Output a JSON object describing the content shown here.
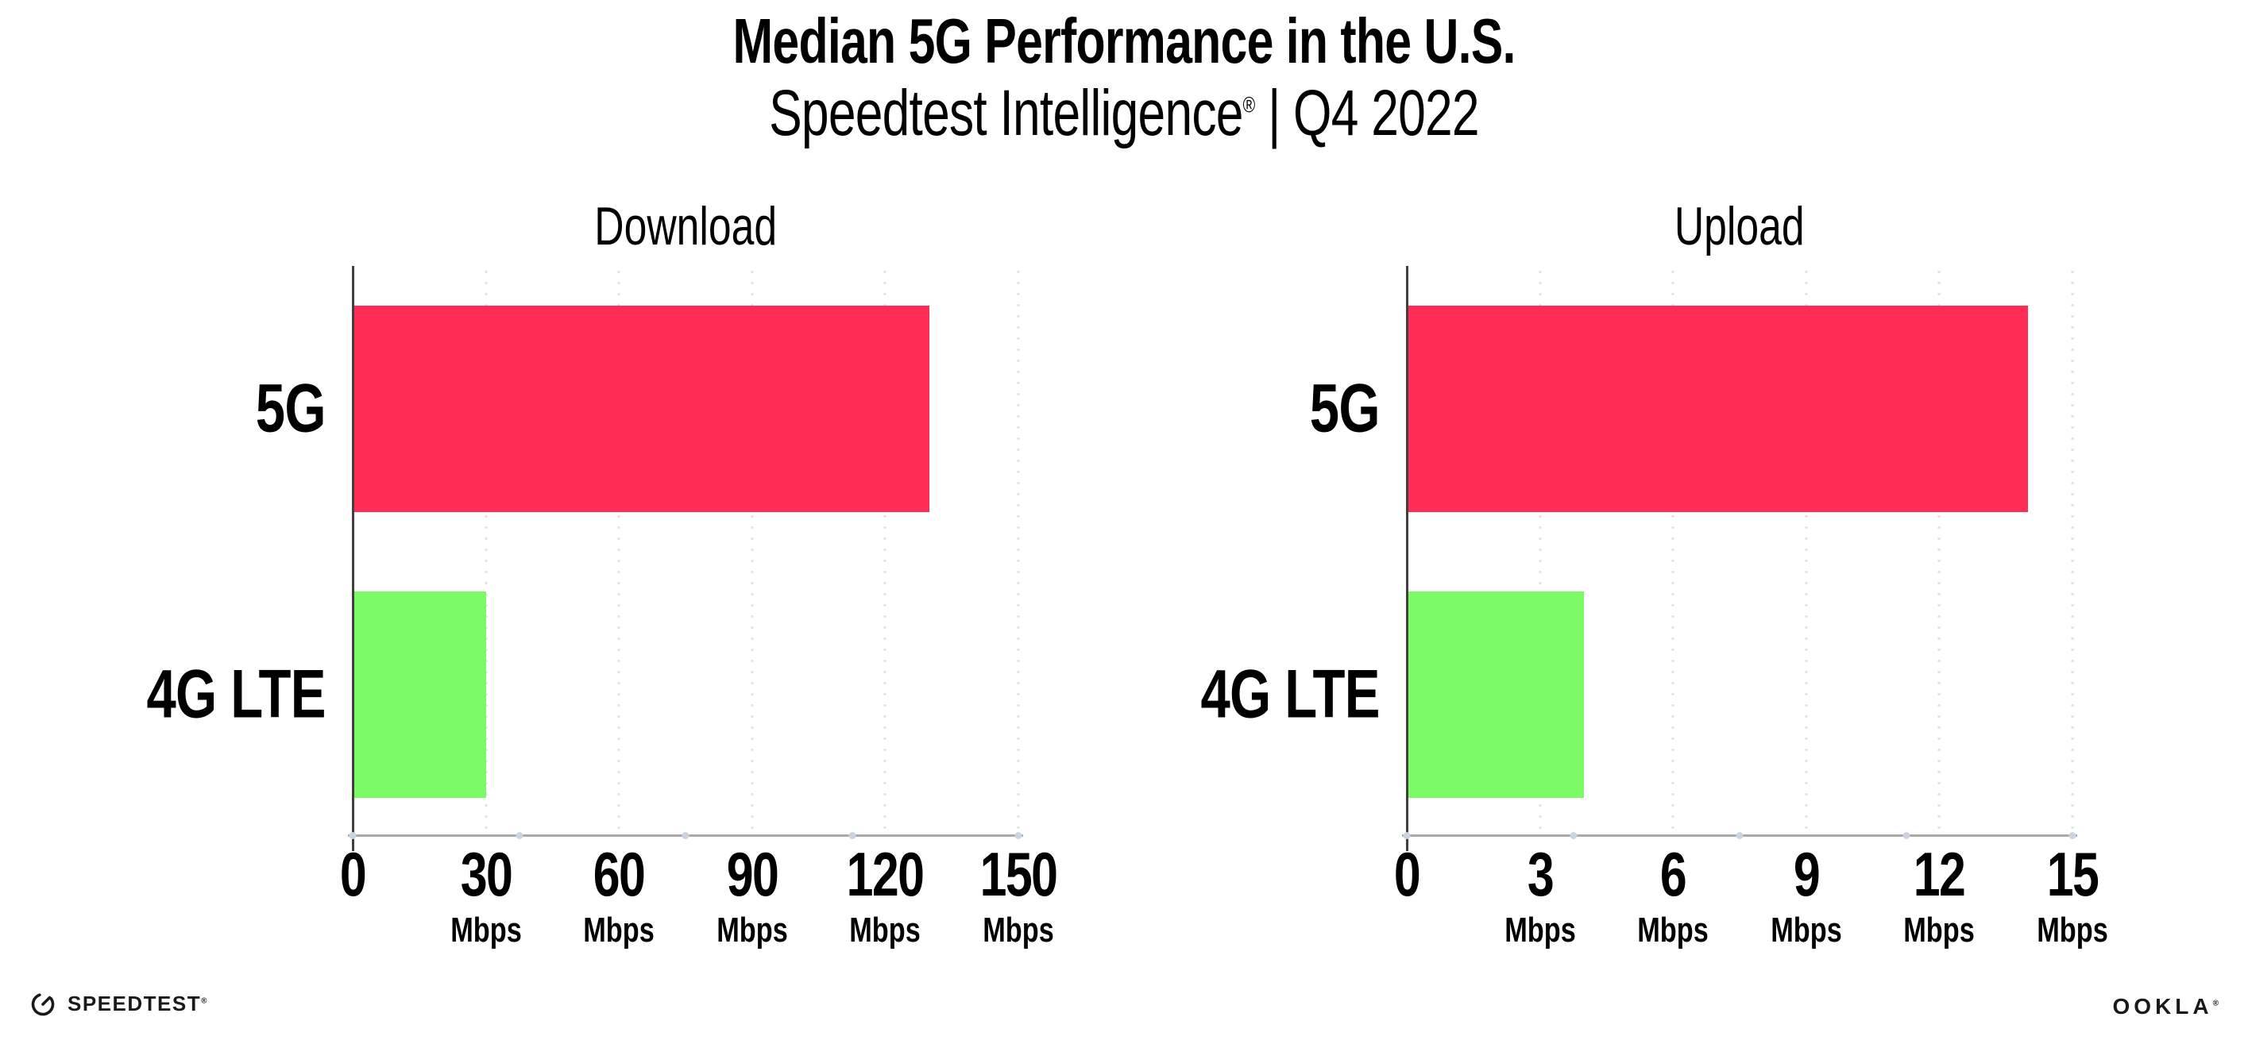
{
  "header": {
    "title": "Median 5G Performance in the U.S.",
    "subtitle_brand": "Speedtest Intelligence",
    "subtitle_reg": "®",
    "subtitle_rest": "| Q4 2022"
  },
  "colors": {
    "five_g_bar": "#FF2D55",
    "four_g_bar": "#7CFA65",
    "x_axis_line": "#a8a8a8",
    "y_axis_line": "#3f3f3f",
    "gridline": "#e1e1e6",
    "axis_dot": "#ccd4e0"
  },
  "chart_data": [
    {
      "type": "bar",
      "orientation": "horizontal",
      "title": "Download",
      "categories": [
        "5G",
        "4G LTE"
      ],
      "values": [
        130,
        30
      ],
      "unit": "Mbps",
      "xlim": [
        0,
        150
      ],
      "xticks": [
        0,
        30,
        60,
        90,
        120,
        150
      ],
      "bar_colors": [
        "#FF2D55",
        "#7CFA65"
      ],
      "grid": "dotted-vertical",
      "legend": "none"
    },
    {
      "type": "bar",
      "orientation": "horizontal",
      "title": "Upload",
      "categories": [
        "5G",
        "4G LTE"
      ],
      "values": [
        14,
        4
      ],
      "unit": "Mbps",
      "xlim": [
        0,
        15
      ],
      "xticks": [
        0,
        3,
        6,
        9,
        12,
        15
      ],
      "bar_colors": [
        "#FF2D55",
        "#7CFA65"
      ],
      "grid": "dotted-vertical",
      "legend": "none"
    }
  ],
  "footer": {
    "speedtest_label": "SPEEDTEST",
    "speedtest_reg": "®",
    "ookla_label": "OOKLA",
    "ookla_reg": "®"
  }
}
